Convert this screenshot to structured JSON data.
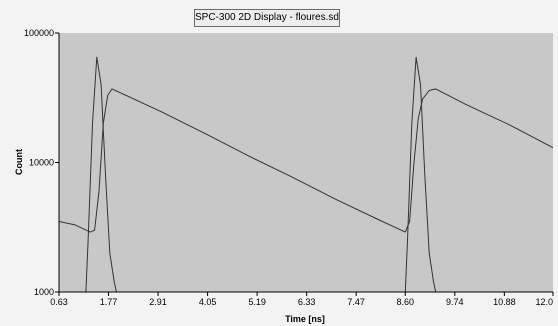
{
  "window": {
    "title": "SPC-300  2D Display - floures.sdt"
  },
  "chart_data": {
    "type": "line",
    "xlabel": "Time [ns]",
    "ylabel": "Count",
    "xlim": [
      0.63,
      12.0
    ],
    "ylim": [
      1000,
      100000
    ],
    "y_scale": "log",
    "x_ticks": [
      "0.63",
      "1.77",
      "2.91",
      "4.05",
      "5.19",
      "6.33",
      "7.47",
      "8.60",
      "9.74",
      "10.88",
      "12.0"
    ],
    "y_ticks": [
      "1000",
      "10000",
      "100000"
    ],
    "grid": false,
    "background_color": "#c8c8c8",
    "line_color": "#333333",
    "series": [
      {
        "x": [
          0.63,
          1.0,
          1.35,
          1.45,
          1.55,
          1.65,
          1.75,
          1.85,
          3.0,
          4.0,
          5.0,
          6.0,
          7.0,
          8.0,
          8.6,
          8.7,
          8.8,
          8.9,
          9.0,
          9.15,
          9.3,
          10.0,
          11.0,
          12.0
        ],
        "y": [
          3500,
          3300,
          2900,
          3000,
          6000,
          20000,
          33000,
          37000,
          24500,
          16700,
          11200,
          7700,
          5200,
          3600,
          2900,
          3500,
          10000,
          22000,
          31000,
          36000,
          37000,
          28000,
          19500,
          13000
        ]
      },
      {
        "x": [
          1.25,
          1.3,
          1.4,
          1.5,
          1.6,
          1.7,
          1.8,
          1.9,
          1.95
        ],
        "y": [
          1000,
          2500,
          20000,
          65000,
          40000,
          8000,
          2000,
          1200,
          1000
        ]
      },
      {
        "x": [
          8.6,
          8.65,
          8.75,
          8.85,
          8.95,
          9.05,
          9.15,
          9.25,
          9.3
        ],
        "y": [
          1000,
          2500,
          20000,
          65000,
          40000,
          8000,
          2000,
          1200,
          1000
        ]
      }
    ]
  }
}
